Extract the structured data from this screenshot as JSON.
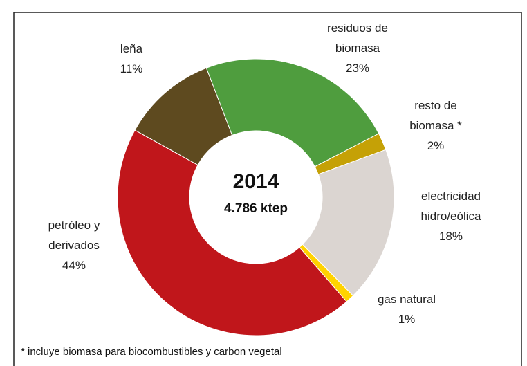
{
  "chart_data": {
    "type": "donut",
    "center_title": "2014",
    "center_subtitle": "4.786 ktep",
    "categories": [
      "residuos de biomasa",
      "resto de biomasa *",
      "electricidad hidro/eólica",
      "gas natural",
      "petróleo y derivados",
      "leña"
    ],
    "values": [
      23,
      2,
      18,
      1,
      44,
      11
    ],
    "value_labels": [
      "23%",
      "2%",
      "18%",
      "1%",
      "44%",
      "11%"
    ],
    "colors": [
      "#4f9d3e",
      "#c5a106",
      "#dbd5d1",
      "#ffd200",
      "#c0161b",
      "#5e4a1f"
    ],
    "footnote": "* incluye biomasa para biocombustibles y carbon vegetal"
  }
}
